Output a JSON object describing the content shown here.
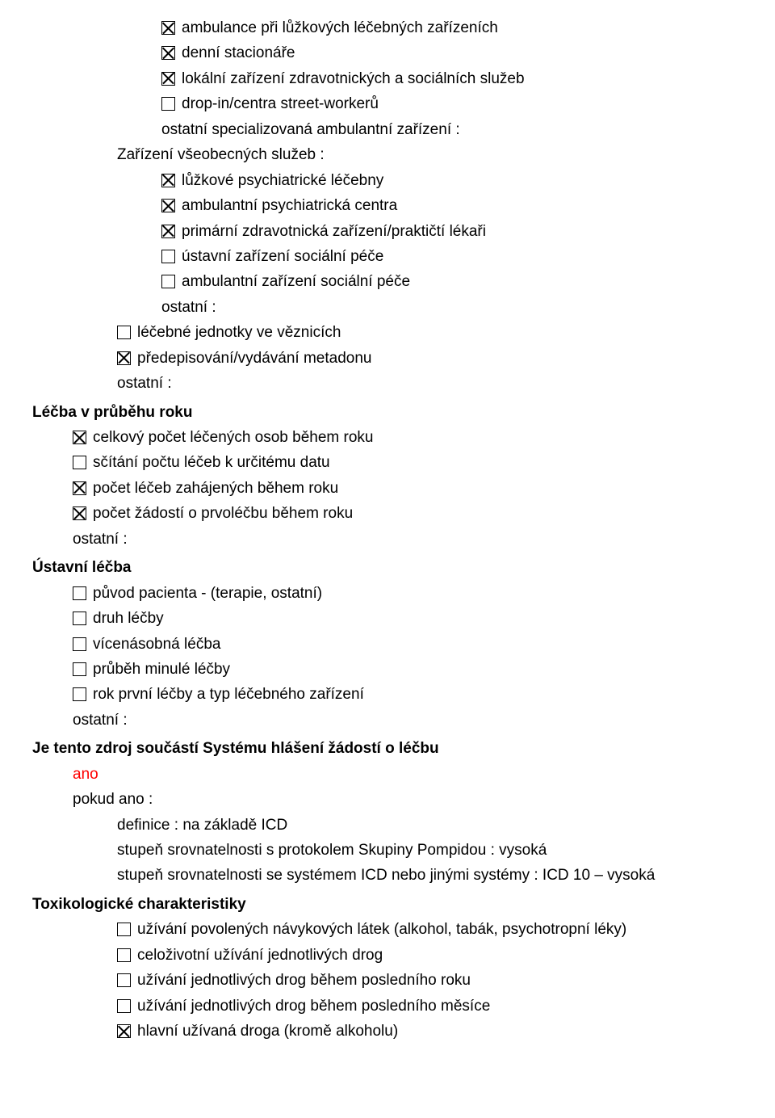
{
  "colors": {
    "text": "#000000",
    "background": "#ffffff",
    "accent": "#ff0000",
    "border": "#000000"
  },
  "typography": {
    "font_family": "Arial",
    "body_fontsize_pt": 14,
    "heading_fontsize_pt": 14,
    "heading_weight": "bold",
    "line_height": 1.55
  },
  "sections": [
    {
      "indent": 3,
      "items": [
        {
          "checked": true,
          "label": "ambulance při lůžkových léčebných zařízeních"
        },
        {
          "checked": true,
          "label": "denní stacionáře"
        },
        {
          "checked": true,
          "label": "lokální zařízení zdravotnických a sociálních služeb"
        },
        {
          "checked": false,
          "label": "drop-in/centra street-workerů"
        },
        {
          "plain": true,
          "label": "ostatní specializovaná ambulantní zařízení :"
        }
      ]
    },
    {
      "indent": 2,
      "items": [
        {
          "plain": true,
          "label": "Zařízení všeobecných služeb :"
        }
      ]
    },
    {
      "indent": 3,
      "items": [
        {
          "checked": true,
          "label": "lůžkové psychiatrické léčebny"
        },
        {
          "checked": true,
          "label": "ambulantní psychiatrická centra"
        },
        {
          "checked": true,
          "label": "primární zdravotnická zařízení/praktičtí lékaři"
        },
        {
          "checked": false,
          "label": "ústavní zařízení sociální péče"
        },
        {
          "checked": false,
          "label": "ambulantní zařízení sociální péče"
        },
        {
          "plain": true,
          "label": "ostatní :"
        }
      ]
    },
    {
      "indent": 2,
      "items": [
        {
          "checked": false,
          "label": "léčebné jednotky ve věznicích"
        },
        {
          "checked": true,
          "label": "předepisování/vydávání metadonu"
        },
        {
          "plain": true,
          "label": "ostatní :"
        }
      ]
    },
    {
      "heading": "Léčba v průběhu roku",
      "indent": 1,
      "items": [
        {
          "checked": true,
          "label": "celkový počet léčených osob během roku"
        },
        {
          "checked": false,
          "label": "sčítání počtu léčeb k určitému datu"
        },
        {
          "checked": true,
          "label": "počet léčeb zahájených během roku"
        },
        {
          "checked": true,
          "label": "počet žádostí o prvoléčbu během roku"
        },
        {
          "plain": true,
          "label": "ostatní :"
        }
      ]
    },
    {
      "heading": "Ústavní léčba",
      "indent": 1,
      "items": [
        {
          "checked": false,
          "label": "původ pacienta - (terapie, ostatní)"
        },
        {
          "checked": false,
          "label": "druh léčby"
        },
        {
          "checked": false,
          "label": "vícenásobná léčba"
        },
        {
          "checked": false,
          "label": "průběh minulé léčby"
        },
        {
          "checked": false,
          "label": "rok první léčby a typ léčebného zařízení"
        },
        {
          "plain": true,
          "label": "ostatní :"
        }
      ]
    },
    {
      "heading": "Je tento zdroj součástí Systému hlášení žádostí o léčbu",
      "indent": 1,
      "items": [
        {
          "plain": true,
          "red": true,
          "label": "ano"
        },
        {
          "plain": true,
          "label": "pokud ano :"
        }
      ]
    },
    {
      "indent": 2,
      "items": [
        {
          "plain": true,
          "label": "definice : na základě ICD"
        },
        {
          "plain": true,
          "label": "stupeň srovnatelnosti s protokolem Skupiny Pompidou : vysoká"
        },
        {
          "plain": true,
          "label": "stupeň srovnatelnosti se systémem ICD nebo jinými systémy : ICD 10 – vysoká"
        }
      ]
    },
    {
      "heading": "Toxikologické charakteristiky",
      "indent": 2,
      "items": [
        {
          "checked": false,
          "label": "užívání povolených návykových látek (alkohol, tabák, psychotropní léky)"
        },
        {
          "checked": false,
          "label": "celoživotní užívání jednotlivých drog"
        },
        {
          "checked": false,
          "label": "užívání jednotlivých drog během posledního roku"
        },
        {
          "checked": false,
          "label": "užívání jednotlivých drog během posledního měsíce"
        },
        {
          "checked": true,
          "label": "hlavní užívaná droga (kromě alkoholu)"
        }
      ]
    }
  ]
}
